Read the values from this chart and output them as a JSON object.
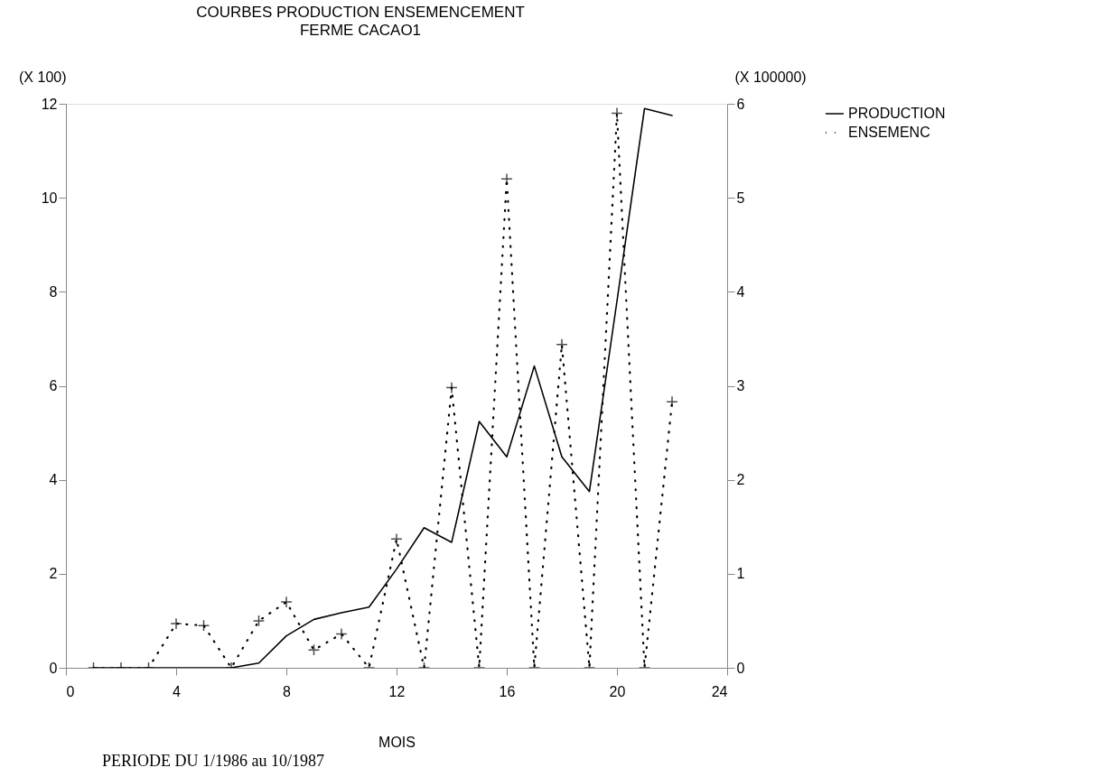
{
  "chart_data": {
    "type": "line",
    "title": "COURBES PRODUCTION ENSEMENCEMENT",
    "subtitle": "FERME CACAO1",
    "xlabel": "MOIS",
    "ylabel": "(X 100)",
    "y2label": "(X 100000)",
    "annotations": [
      "PERIODE DU 1/1986 au 10/1987"
    ],
    "x": [
      1,
      2,
      3,
      4,
      5,
      6,
      7,
      8,
      9,
      10,
      11,
      12,
      13,
      14,
      15,
      16,
      17,
      18,
      19,
      20,
      21,
      22
    ],
    "series": [
      {
        "name": "PRODUCTION",
        "color": "#000000",
        "axis": "y",
        "marker": "none",
        "line_style": "solid",
        "values": [
          0,
          0,
          0,
          0,
          0,
          0,
          0.1,
          0.68,
          1.03,
          1.17,
          1.29,
          2.1,
          2.98,
          2.67,
          5.24,
          4.49,
          6.42,
          4.49,
          3.75,
          7.8,
          11.9,
          11.75
        ]
      },
      {
        "name": "ENSEMENC",
        "color": "#000000",
        "axis": "y2",
        "marker": "cross",
        "line_style": "dotted",
        "values": [
          0,
          0,
          0,
          0.47,
          0.45,
          0,
          0.5,
          0.7,
          0.19,
          0.36,
          0,
          1.37,
          0,
          2.98,
          0,
          5.2,
          0,
          3.44,
          0,
          5.9,
          0,
          2.83
        ]
      }
    ],
    "xlim": [
      0,
      24
    ],
    "xticks": [
      0,
      4,
      8,
      12,
      16,
      20,
      24
    ],
    "ylim": [
      0,
      12
    ],
    "yticks": [
      0,
      2,
      4,
      6,
      8,
      10,
      12
    ],
    "y2lim": [
      0,
      6
    ],
    "y2ticks": [
      0,
      1,
      2,
      3,
      4,
      5,
      6
    ],
    "grid": false,
    "legend": "top right"
  }
}
